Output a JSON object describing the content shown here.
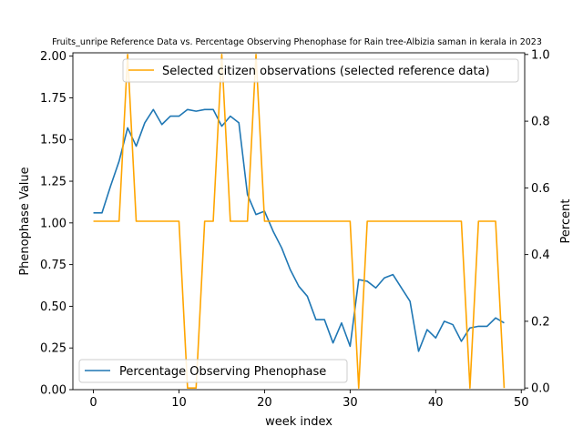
{
  "chart_data": {
    "type": "line",
    "title": "Fruits_unripe Reference Data vs. Percentage Observing Phenophase for Rain tree-Albizia saman in kerala in 2023",
    "xlabel": "week index",
    "ylabel_left": "Phenophase Value",
    "ylabel_right": "Percent",
    "xlim": [
      -2.4,
      50.4
    ],
    "ylim_left": [
      0,
      2.02
    ],
    "ylim_right": [
      -0.005,
      1.005
    ],
    "x_ticks": [
      0,
      10,
      20,
      30,
      40,
      50
    ],
    "y_ticks_left": [
      "0.00",
      "0.25",
      "0.50",
      "0.75",
      "1.00",
      "1.25",
      "1.50",
      "1.75",
      "2.00"
    ],
    "y_ticks_right": [
      "0.0",
      "0.2",
      "0.4",
      "0.6",
      "0.8",
      "1.0"
    ],
    "legend_upper": {
      "placement": "top-right",
      "label": "Selected citizen observations (selected reference data)"
    },
    "legend_lower": {
      "placement": "bottom-left",
      "label": "Percentage Observing Phenophase"
    },
    "series": [
      {
        "name": "Percentage Observing Phenophase",
        "color": "#1f77b4",
        "axis": "left",
        "x": [
          0,
          1,
          2,
          3,
          4,
          5,
          6,
          7,
          8,
          9,
          10,
          11,
          12,
          13,
          14,
          15,
          16,
          17,
          18,
          19,
          20,
          21,
          22,
          23,
          24,
          25,
          26,
          27,
          28,
          29,
          30,
          31,
          32,
          33,
          34,
          35,
          36,
          37,
          38,
          39,
          40,
          41,
          42,
          43,
          44,
          45,
          46,
          47,
          48
        ],
        "values": [
          1.06,
          1.06,
          1.22,
          1.37,
          1.57,
          1.46,
          1.6,
          1.68,
          1.59,
          1.64,
          1.64,
          1.68,
          1.67,
          1.68,
          1.68,
          1.58,
          1.64,
          1.6,
          1.17,
          1.05,
          1.07,
          0.95,
          0.85,
          0.72,
          0.62,
          0.56,
          0.42,
          0.42,
          0.28,
          0.4,
          0.26,
          0.66,
          0.65,
          0.61,
          0.67,
          0.69,
          0.61,
          0.53,
          0.23,
          0.36,
          0.31,
          0.41,
          0.39,
          0.29,
          0.37,
          0.38,
          0.38,
          0.43,
          0.4
        ]
      },
      {
        "name": "Selected citizen observations (selected reference data)",
        "color": "#ffa500",
        "axis": "right",
        "x": [
          0,
          1,
          2,
          3,
          4,
          5,
          6,
          7,
          8,
          9,
          10,
          11,
          12,
          13,
          14,
          15,
          16,
          17,
          18,
          19,
          20,
          21,
          22,
          23,
          24,
          25,
          26,
          27,
          28,
          29,
          30,
          31,
          32,
          33,
          34,
          35,
          36,
          37,
          38,
          39,
          40,
          41,
          42,
          43,
          44,
          45,
          46,
          47,
          48
        ],
        "values": [
          0.5,
          0.5,
          0.5,
          0.5,
          1.0,
          0.5,
          0.5,
          0.5,
          0.5,
          0.5,
          0.5,
          0.0,
          0.0,
          0.5,
          0.5,
          1.0,
          0.5,
          0.5,
          0.5,
          1.0,
          0.5,
          0.5,
          0.5,
          0.5,
          0.5,
          0.5,
          0.5,
          0.5,
          0.5,
          0.5,
          0.5,
          0.0,
          0.5,
          0.5,
          0.5,
          0.5,
          0.5,
          0.5,
          0.5,
          0.5,
          0.5,
          0.5,
          0.5,
          0.5,
          0.0,
          0.5,
          0.5,
          0.5,
          0.0
        ]
      }
    ]
  }
}
